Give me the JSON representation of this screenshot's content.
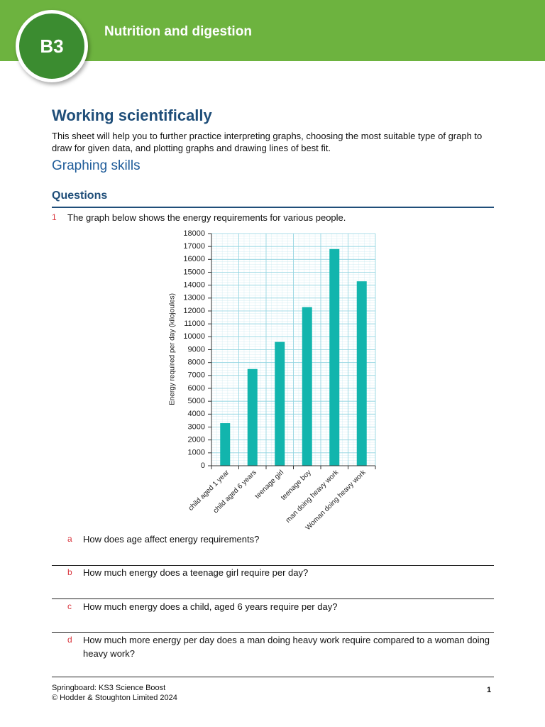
{
  "header": {
    "badge": "B3",
    "title": "Nutrition and digestion"
  },
  "heading": "Working scientifically",
  "intro": "This sheet will help you to further practice interpreting graphs, choosing the most suitable type of graph to draw for given data, and plotting graphs and drawing lines of best fit.",
  "subheading": "Graphing skills",
  "questions_heading": "Questions",
  "question": {
    "number": "1",
    "text": "The graph below shows the energy requirements for various people."
  },
  "chart_data": {
    "type": "bar",
    "y_label": "Energy required per day (kilojoules)",
    "categories": [
      "child aged 1 year",
      "child aged 6 years",
      "teenage girl",
      "teenage boy",
      "man doing heavy work",
      "Woman doing heavy work"
    ],
    "values": [
      3300,
      7500,
      9600,
      12300,
      16800,
      14300
    ],
    "color": "#12b5ad",
    "ylim": [
      0,
      18000
    ],
    "yticks": [
      0,
      1000,
      2000,
      3000,
      4000,
      5000,
      6000,
      7000,
      8000,
      9000,
      10000,
      11000,
      12000,
      13000,
      14000,
      15000,
      16000,
      17000,
      18000
    ],
    "grid": true
  },
  "parts": [
    {
      "letter": "a",
      "text": "How does age affect energy requirements?"
    },
    {
      "letter": "b",
      "text": "How much energy does a teenage girl require per day?"
    },
    {
      "letter": "c",
      "text": "How much energy does a child, aged 6 years require per day?"
    },
    {
      "letter": "d",
      "text": "How much more energy per day does a man doing heavy work require compared to a woman doing heavy work?"
    }
  ],
  "footer": {
    "line1": "Springboard: KS3 Science Boost",
    "line2": "© Hodder & Stoughton Limited 2024",
    "page": "1"
  }
}
